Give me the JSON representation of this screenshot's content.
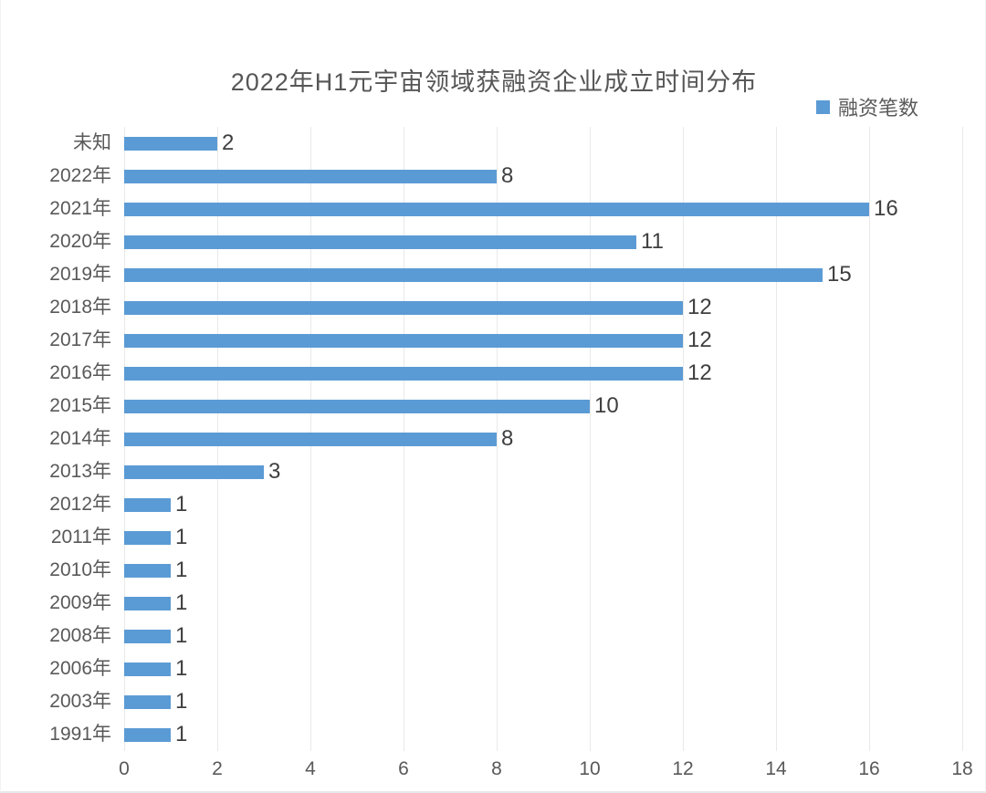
{
  "title": "2022年H1元宇宙领域获融资企业成立时间分布",
  "legend": {
    "label": "融资笔数",
    "color": "#5B9BD5"
  },
  "colors": {
    "bar": "#5B9BD5",
    "gridline": "#e9e9e9",
    "axis_text": "#595959",
    "value_text": "#3f3f3f",
    "title_text": "#565656"
  },
  "chart_data": {
    "type": "bar",
    "orientation": "horizontal",
    "title": "2022年H1元宇宙领域获融资企业成立时间分布",
    "series_name": "融资笔数",
    "categories": [
      "未知",
      "2022年",
      "2021年",
      "2020年",
      "2019年",
      "2018年",
      "2017年",
      "2016年",
      "2015年",
      "2014年",
      "2013年",
      "2012年",
      "2011年",
      "2010年",
      "2009年",
      "2008年",
      "2006年",
      "2003年",
      "1991年"
    ],
    "values": [
      2,
      8,
      16,
      11,
      15,
      12,
      12,
      12,
      10,
      8,
      3,
      1,
      1,
      1,
      1,
      1,
      1,
      1,
      1
    ],
    "xlim": [
      0,
      18
    ],
    "x_ticks": [
      0,
      2,
      4,
      6,
      8,
      10,
      12,
      14,
      16,
      18
    ],
    "xlabel": "",
    "ylabel": "",
    "grid": true,
    "value_labels": true,
    "legend_position": "top-right",
    "bar_color": "#5B9BD5"
  }
}
